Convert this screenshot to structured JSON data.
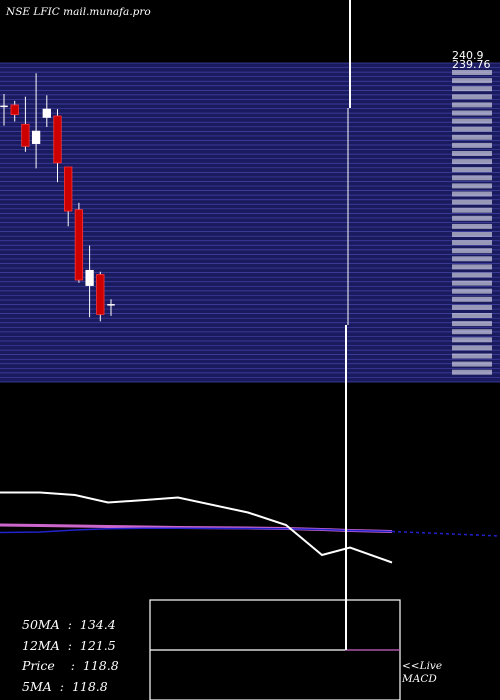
{
  "header": {
    "site": "NSE LFIC mail.munafa.pro"
  },
  "price_labels": {
    "top": "240.9",
    "second": "239.76"
  },
  "stats": [
    {
      "label": "50MA",
      "value": "134.4"
    },
    {
      "label": "12MA",
      "value": "121.5"
    },
    {
      "label": "Price",
      "value": "118.8"
    },
    {
      "label": "5MA",
      "value": "118.8"
    }
  ],
  "macd_label": {
    "line1": "<<Live",
    "line2": "MACD"
  },
  "colors": {
    "background": "#000000",
    "band_fill": "#1a1a5e",
    "band_line": "#4444aa",
    "candle_up": "#ffffff",
    "candle_down": "#cc0000",
    "ma_white": "#ffffff",
    "ma_magenta": "#cc66cc",
    "ma_blue": "#2222cc"
  },
  "chart_data": {
    "type": "candlestick",
    "title": "NSE LFIC mail.munafa.pro",
    "y_axis_top_labels": [
      "240.9",
      "239.76"
    ],
    "candles": [
      {
        "open": 200,
        "close": 200,
        "high": 209,
        "low": 186,
        "dir": "doji"
      },
      {
        "open": 201,
        "close": 194,
        "high": 204,
        "low": 189,
        "dir": "down"
      },
      {
        "open": 187,
        "close": 171,
        "high": 207,
        "low": 167,
        "dir": "down"
      },
      {
        "open": 173,
        "close": 182,
        "high": 224,
        "low": 155,
        "dir": "up"
      },
      {
        "open": 192,
        "close": 198,
        "high": 208,
        "low": 185,
        "dir": "up"
      },
      {
        "open": 193,
        "close": 159,
        "high": 198,
        "low": 145,
        "dir": "down"
      },
      {
        "open": 156,
        "close": 124,
        "high": 155,
        "low": 113,
        "dir": "down"
      },
      {
        "open": 125,
        "close": 74,
        "high": 130,
        "low": 72,
        "dir": "down"
      },
      {
        "open": 70,
        "close": 81,
        "high": 99,
        "low": 47,
        "dir": "up"
      },
      {
        "open": 78,
        "close": 49,
        "high": 80,
        "low": 44,
        "dir": "down"
      },
      {
        "open": 56,
        "close": 56,
        "high": 60,
        "low": 48,
        "dir": "doji"
      }
    ],
    "moving_averages": {
      "white": [
        0.63,
        0.63,
        0.62,
        0.59,
        0.6,
        0.61,
        0.55,
        0.5,
        0.38,
        0.41,
        0.35
      ],
      "magenta": [
        0.5,
        0.498,
        0.496,
        0.494,
        0.492,
        0.49,
        0.488,
        0.486,
        0.482,
        0.478,
        0.474
      ],
      "blue": [
        0.47,
        0.472,
        0.48,
        0.485,
        0.487,
        0.487,
        0.486,
        0.485,
        0.482,
        0.478,
        0.474
      ]
    }
  }
}
